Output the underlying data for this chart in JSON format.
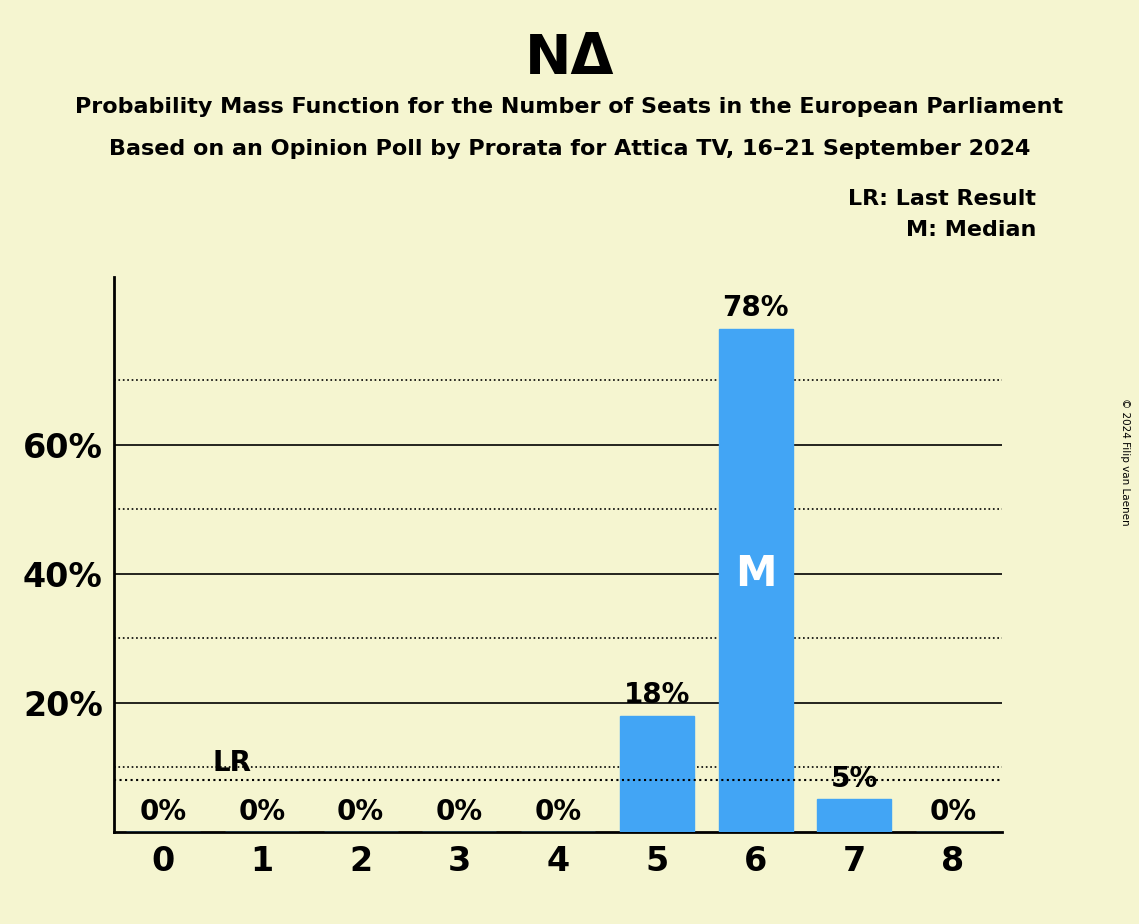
{
  "title": "NΔ",
  "subtitle1": "Probability Mass Function for the Number of Seats in the European Parliament",
  "subtitle2": "Based on an Opinion Poll by Prorata for Attica TV, 16–21 September 2024",
  "copyright": "© 2024 Filip van Laenen",
  "categories": [
    0,
    1,
    2,
    3,
    4,
    5,
    6,
    7,
    8
  ],
  "values": [
    0,
    0,
    0,
    0,
    0,
    18,
    78,
    5,
    0
  ],
  "bar_color": "#42a5f5",
  "background_color": "#f5f5d0",
  "lr_value": 8,
  "lr_label": "LR",
  "median_seat": 6,
  "median_label": "M",
  "legend_lr": "LR: Last Result",
  "legend_m": "M: Median",
  "yticks_major": [
    20,
    40,
    60
  ],
  "yticks_dotted": [
    10,
    30,
    50,
    70
  ],
  "ylim_max": 86,
  "xlim": [
    -0.5,
    8.5
  ],
  "bar_width": 0.75
}
